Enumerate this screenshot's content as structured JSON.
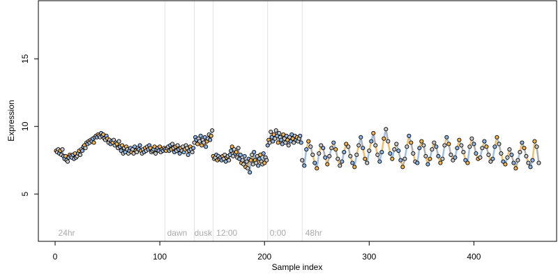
{
  "chart_data": {
    "type": "scatter",
    "title": "",
    "xlabel": "Sample index",
    "ylabel": "Expression",
    "xlim": [
      -16,
      479
    ],
    "ylim": [
      1.5,
      19.3
    ],
    "xticks": [
      0,
      100,
      200,
      300,
      400
    ],
    "yticks": [
      5,
      10,
      15
    ],
    "grid": false,
    "legend": "none",
    "condition_boundaries": [
      105,
      133,
      151,
      203,
      236
    ],
    "condition_labels": [
      {
        "text": "24hr",
        "x": 3
      },
      {
        "text": "dawn",
        "x": 107
      },
      {
        "text": "dusk",
        "x": 133
      },
      {
        "text": "12:00",
        "x": 154
      },
      {
        "text": "0:00",
        "x": 205
      },
      {
        "text": "48hr",
        "x": 239
      }
    ],
    "colors": {
      "point_default": "#c8c8c8",
      "point_blue": "#8eb4e3",
      "point_orange": "#f2b24c",
      "line_blue": "#8eb4e3",
      "line_orange": "#f2b24c",
      "line_gray": "#a0a0a0",
      "boundary": "#e0e0e0",
      "condition_label": "#aaaaaa"
    },
    "series": [
      {
        "x": [
          1,
          2,
          3,
          4,
          5,
          6,
          7,
          8,
          9,
          10,
          11,
          12,
          13,
          14,
          15,
          16,
          17,
          18,
          19,
          20,
          21,
          22,
          23,
          24,
          25,
          26,
          27,
          28,
          29,
          30,
          31,
          32,
          33,
          34,
          35,
          36,
          37,
          38,
          39,
          40,
          41,
          42,
          43,
          44,
          45,
          46,
          47,
          48,
          49,
          50,
          51,
          52,
          53,
          54,
          55,
          56,
          57,
          58,
          59,
          60,
          61,
          62,
          63,
          64,
          65,
          66,
          67,
          68,
          69,
          70,
          71,
          72,
          73,
          74,
          75,
          76,
          77,
          78,
          79,
          80,
          81,
          82,
          83,
          84,
          85,
          86,
          87,
          88,
          89,
          90,
          91,
          92,
          93,
          94,
          95,
          96,
          97,
          98,
          99,
          100,
          101,
          102,
          103,
          104
        ],
        "y": [
          8.2,
          8.1,
          8.3,
          8.0,
          8.2,
          7.9,
          8.3,
          7.8,
          7.6,
          7.8,
          7.5,
          7.4,
          7.7,
          7.9,
          7.8,
          7.7,
          7.9,
          7.6,
          8.0,
          7.7,
          7.8,
          8.0,
          8.2,
          7.9,
          8.3,
          8.2,
          8.5,
          8.6,
          8.4,
          8.8,
          8.7,
          8.9,
          8.8,
          9.0,
          8.9,
          9.1,
          8.8,
          9.2,
          9.3,
          9.2,
          9.4,
          9.3,
          9.2,
          9.5,
          9.3,
          9.4,
          9.1,
          9.0,
          9.3,
          9.1,
          8.8,
          9.0,
          8.7,
          8.9,
          8.8,
          9.0,
          8.6,
          8.8,
          8.7,
          8.4,
          8.9,
          8.5,
          8.2,
          8.6,
          8.0,
          8.4,
          8.1,
          8.5,
          8.3,
          8.0,
          8.2,
          8.4,
          8.1,
          8.3,
          8.0,
          8.5,
          8.2,
          8.1,
          8.4,
          8.3,
          8.6,
          8.2,
          8.0,
          8.3,
          8.1,
          8.4,
          8.2,
          8.5,
          8.3,
          8.6,
          8.4,
          8.1,
          8.2,
          8.3,
          8.5,
          8.0,
          8.3,
          8.4,
          8.2,
          8.5,
          8.1,
          8.3,
          8.2,
          8.4
        ]
      },
      {
        "x": [
          105,
          106,
          107,
          108,
          109,
          110,
          111,
          112,
          113,
          114,
          115,
          116,
          117,
          118,
          119,
          120,
          121,
          122,
          123,
          124,
          125,
          126,
          127,
          128,
          129,
          130,
          131,
          132
        ],
        "y": [
          8.3,
          8.2,
          8.4,
          8.5,
          8.2,
          8.6,
          8.3,
          8.7,
          8.4,
          8.1,
          8.5,
          8.2,
          8.6,
          8.3,
          8.0,
          8.4,
          8.2,
          8.5,
          8.1,
          8.3,
          8.6,
          8.4,
          7.9,
          8.2,
          8.5,
          8.3,
          8.1,
          8.4
        ]
      },
      {
        "x": [
          133,
          134,
          135,
          136,
          137,
          138,
          139,
          140,
          141,
          142,
          143,
          144,
          145,
          146,
          147,
          148,
          149,
          150
        ],
        "y": [
          8.8,
          9.2,
          9.0,
          8.7,
          9.1,
          8.9,
          9.3,
          8.6,
          9.0,
          8.8,
          9.2,
          8.5,
          8.9,
          9.1,
          9.4,
          9.0,
          9.3,
          9.7
        ]
      },
      {
        "x": [
          151,
          152,
          153,
          154,
          155,
          156,
          157,
          158,
          159,
          160,
          161,
          162,
          163,
          164,
          165,
          166,
          167,
          168,
          169,
          170,
          171,
          172,
          173,
          174,
          175,
          176,
          177,
          178,
          179,
          180,
          181,
          182,
          183,
          184,
          185,
          186,
          187,
          188,
          189,
          190,
          191,
          192,
          193,
          194,
          195,
          196,
          197,
          198,
          199,
          200,
          201,
          202
        ],
        "y": [
          7.8,
          7.6,
          7.7,
          7.9,
          7.5,
          7.8,
          7.6,
          7.7,
          7.5,
          7.8,
          7.6,
          7.9,
          7.4,
          7.7,
          7.8,
          7.5,
          7.9,
          8.2,
          8.5,
          7.8,
          8.3,
          8.0,
          8.1,
          7.7,
          8.4,
          7.6,
          7.9,
          7.3,
          7.5,
          7.2,
          7.8,
          7.0,
          7.4,
          6.9,
          7.6,
          6.6,
          7.5,
          7.9,
          7.2,
          8.1,
          7.5,
          7.3,
          7.8,
          7.1,
          7.6,
          7.9,
          7.4,
          7.2,
          8.0,
          7.3,
          7.7,
          7.5
        ]
      },
      {
        "x": [
          203,
          204,
          205,
          206,
          207,
          208,
          209,
          210,
          211,
          212,
          213,
          214,
          215,
          216,
          217,
          218,
          219,
          220,
          221,
          222,
          223,
          224,
          225,
          226,
          227,
          228,
          229,
          230,
          231,
          232,
          233,
          234,
          235
        ],
        "y": [
          8.6,
          9.0,
          8.8,
          9.6,
          9.2,
          8.9,
          9.4,
          9.1,
          9.7,
          9.3,
          8.8,
          9.5,
          9.2,
          9.0,
          8.7,
          9.4,
          9.1,
          8.8,
          9.3,
          9.0,
          8.6,
          9.2,
          8.9,
          9.4,
          9.1,
          8.8,
          9.3,
          9.0,
          9.2,
          8.9,
          9.1,
          9.3,
          8.8
        ]
      },
      {
        "x": [
          236,
          238,
          240,
          242,
          244,
          246,
          248,
          250,
          252,
          254,
          256,
          258,
          260,
          262,
          264,
          266,
          268,
          270,
          272,
          274,
          276,
          278,
          280,
          282,
          284,
          286,
          288,
          290,
          292,
          294,
          296,
          298,
          300,
          302,
          304,
          306,
          308,
          310,
          312,
          314,
          316,
          318,
          320,
          322,
          324,
          326,
          328,
          330,
          332,
          334,
          336,
          338,
          340,
          342,
          344,
          346,
          348,
          350,
          352,
          354,
          356,
          358,
          360,
          362,
          364,
          366,
          368,
          370,
          372,
          374,
          376,
          378,
          380,
          382,
          384,
          386,
          388,
          390,
          392,
          394,
          396,
          398,
          400,
          402,
          404,
          406,
          408,
          410,
          412,
          414,
          416,
          418,
          420,
          422,
          424,
          426,
          428,
          430,
          432,
          434,
          436,
          438,
          440,
          442,
          444,
          446,
          448,
          450,
          452,
          454,
          456,
          458,
          460,
          462
        ],
        "y": [
          7.5,
          7.1,
          8.3,
          8.9,
          8.5,
          7.9,
          7.3,
          6.9,
          8.0,
          8.6,
          8.4,
          7.7,
          7.2,
          7.8,
          8.4,
          8.8,
          8.3,
          7.6,
          7.1,
          7.4,
          8.1,
          8.7,
          8.5,
          7.8,
          7.3,
          7.0,
          7.9,
          8.6,
          9.2,
          8.4,
          7.6,
          7.3,
          8.2,
          8.9,
          9.5,
          8.6,
          7.9,
          7.4,
          8.1,
          9.1,
          9.8,
          8.9,
          8.0,
          7.6,
          8.3,
          8.7,
          8.2,
          7.5,
          7.0,
          7.6,
          8.5,
          9.3,
          8.8,
          8.0,
          7.4,
          7.3,
          8.4,
          8.9,
          8.6,
          7.8,
          7.2,
          7.6,
          8.3,
          8.8,
          8.5,
          7.8,
          7.3,
          7.6,
          8.6,
          9.2,
          8.7,
          7.9,
          7.5,
          7.7,
          8.4,
          9.0,
          8.6,
          8.1,
          7.5,
          7.3,
          8.5,
          9.1,
          8.7,
          8.0,
          7.6,
          7.7,
          8.4,
          8.9,
          8.5,
          7.9,
          7.4,
          7.6,
          8.5,
          9.2,
          8.7,
          8.0,
          7.4,
          7.2,
          7.7,
          8.3,
          7.9,
          7.3,
          6.9,
          7.5,
          8.1,
          8.8,
          8.4,
          7.8,
          7.3,
          7.0,
          7.5,
          8.9,
          8.5,
          7.3
        ]
      }
    ]
  }
}
